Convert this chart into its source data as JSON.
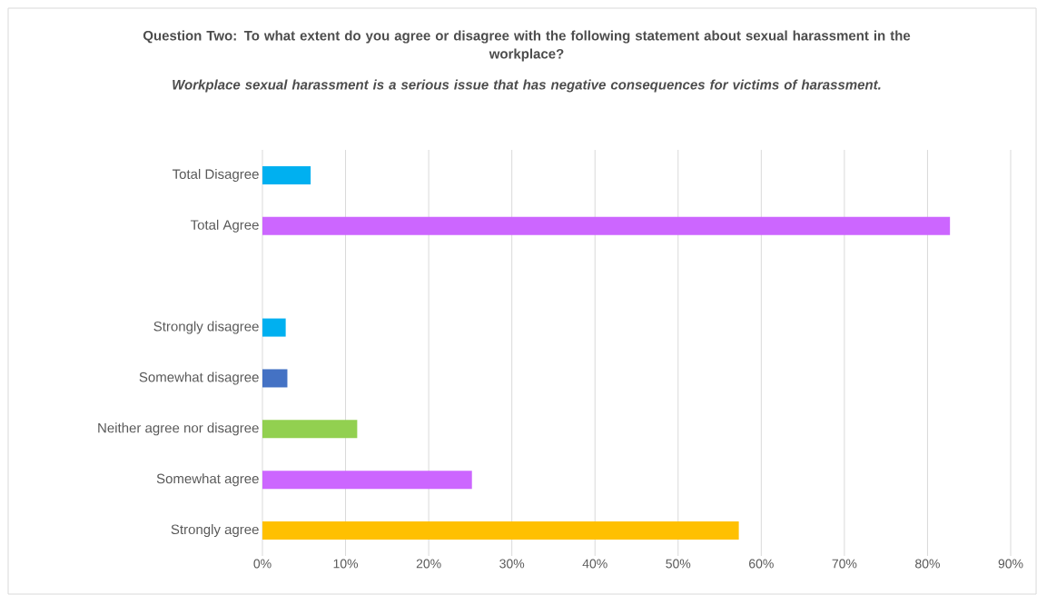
{
  "chart_data": {
    "type": "bar",
    "orientation": "horizontal",
    "title": "Question Two: To what extent do you agree or disagree with the following statement about sexual harassment in the workplace?",
    "subtitle": "Workplace sexual harassment is a serious issue that has negative consequences for victims of harassment.",
    "categories": [
      "Total Disagree",
      "Total Agree",
      null,
      "Strongly disagree",
      "Somewhat disagree",
      "Neither agree nor disagree",
      "Somewhat agree",
      "Strongly agree"
    ],
    "values": [
      5.8,
      82.7,
      null,
      2.8,
      3.0,
      11.4,
      25.2,
      57.3
    ],
    "colors": [
      "#00b0f0",
      "#cc66ff",
      "#cc66ff",
      "#00b0f0",
      "#4472c4",
      "#92d050",
      "#cc66ff",
      "#ffc000"
    ],
    "xlim": [
      0,
      90
    ],
    "xticks": [
      {
        "value": 0,
        "label": "0%"
      },
      {
        "value": 10,
        "label": "10%"
      },
      {
        "value": 20,
        "label": "20%"
      },
      {
        "value": 30,
        "label": "30%"
      },
      {
        "value": 40,
        "label": "40%"
      },
      {
        "value": 50,
        "label": "50%"
      },
      {
        "value": 60,
        "label": "60%"
      },
      {
        "value": 70,
        "label": "70%"
      },
      {
        "value": 80,
        "label": "80%"
      },
      {
        "value": 90,
        "label": "90%"
      }
    ],
    "grid": "x"
  }
}
